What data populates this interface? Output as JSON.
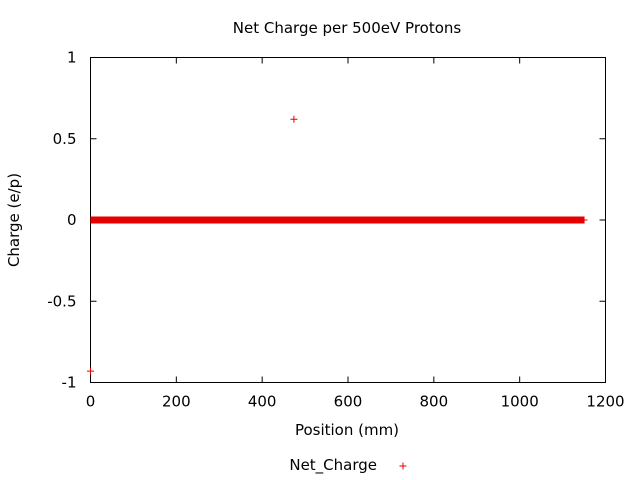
{
  "chart_data": {
    "type": "scatter",
    "title": "Net Charge per 500eV Protons",
    "xlabel": "Position (mm)",
    "ylabel": "Charge (e/p)",
    "xlim": [
      0,
      1200
    ],
    "ylim": [
      -1,
      1
    ],
    "xticks": [
      0,
      200,
      400,
      600,
      800,
      1000,
      1200
    ],
    "xtick_labels": [
      "0",
      "200",
      "400",
      "600",
      "800",
      "1000",
      "1200"
    ],
    "yticks": [
      1,
      0.5,
      0,
      -0.5,
      -1
    ],
    "ytick_labels": [
      "1",
      "0.5",
      "0",
      "-0.5",
      "-1"
    ],
    "grid": false,
    "legend_position": "bottom-center",
    "series": [
      {
        "name": "Net_Charge",
        "color": "#e60000",
        "marker": "plus",
        "dense_run": {
          "x_start": 0,
          "x_end": 1150,
          "y": 0
        },
        "points": [
          {
            "x": 0,
            "y": -0.93
          },
          {
            "x": 474,
            "y": 0.62
          },
          {
            "x": 1150,
            "y": 0
          }
        ]
      }
    ]
  }
}
